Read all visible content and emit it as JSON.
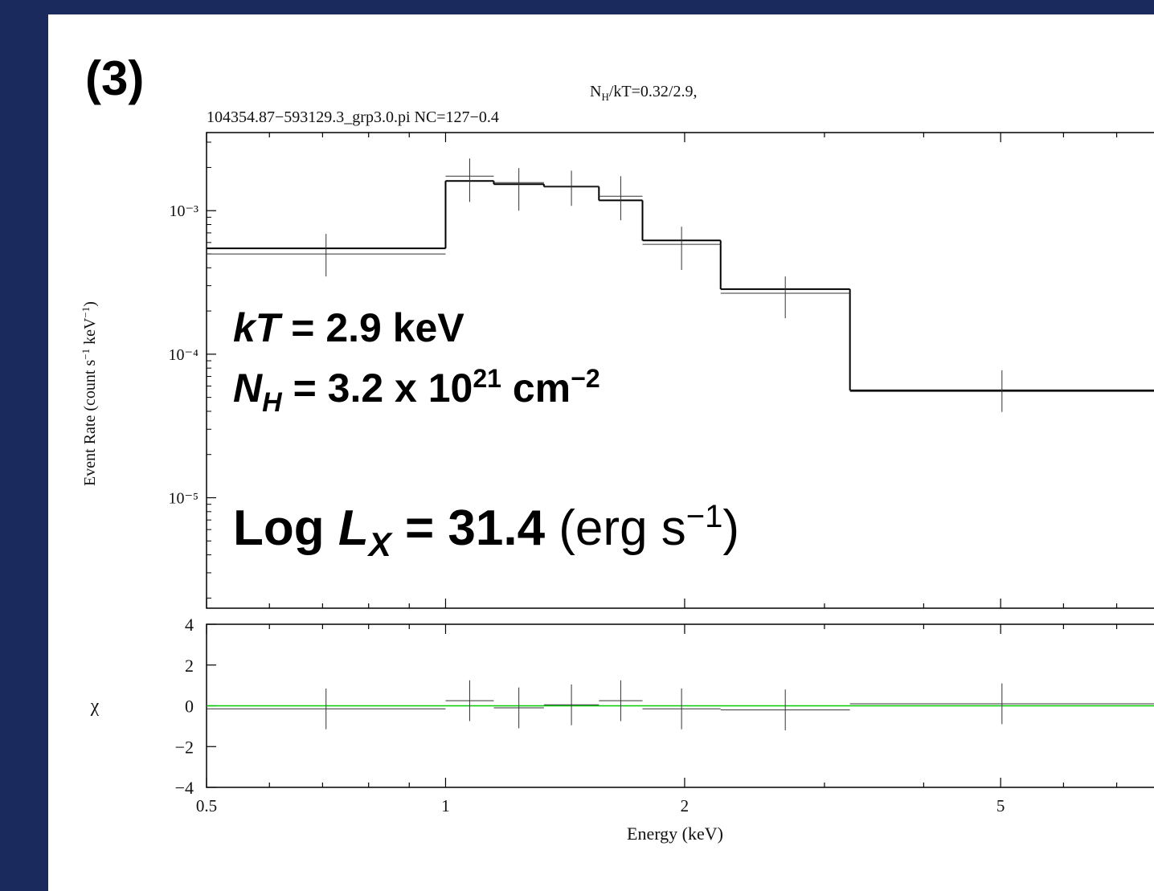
{
  "chart_data": {
    "type": "step",
    "panel_label": "(3)",
    "title": [
      "N",
      "H",
      "/kT=0.32/2.9,"
    ],
    "subtitle": "104354.87−593129.3_grp3.0.pi NC=127−0.4",
    "annotations": {
      "temperature": [
        "kT",
        " = 2.9 keV"
      ],
      "column": [
        "N",
        "H",
        " = 3.2 x 10",
        "21",
        " cm",
        "−2"
      ],
      "luminosity": [
        "Log ",
        "L",
        "X",
        " = 31.4",
        " (erg s",
        "−1",
        ")"
      ]
    },
    "x_label": "Energy (keV)",
    "y_label": [
      "Event Rate (count s",
      "−1",
      " keV",
      "−1",
      ")"
    ],
    "residual_label": "χ",
    "xscale": "log",
    "xlim": [
      0.5,
      7.8
    ],
    "xticks": [
      0.5,
      1,
      2,
      5
    ],
    "xminor": [
      0.6,
      0.7,
      0.8,
      0.9,
      3,
      4,
      6,
      7
    ],
    "yscale": "log",
    "ylim": [
      1.7e-06,
      0.0035
    ],
    "yticks": [
      {
        "value": 0.001,
        "label": "10⁻³"
      },
      {
        "value": 0.0001,
        "label": "10⁻⁴"
      },
      {
        "value": 1e-05,
        "label": "10⁻⁵"
      }
    ],
    "yminor": [
      0.002,
      0.003,
      0.0002,
      0.0003,
      0.0004,
      0.0005,
      0.0006,
      0.0007,
      0.0008,
      0.0009,
      2e-05,
      3e-05,
      4e-05,
      5e-05,
      6e-05,
      7e-05,
      8e-05,
      9e-05,
      2e-06,
      3e-06,
      4e-06,
      5e-06,
      6e-06,
      7e-06,
      8e-06,
      9e-06
    ],
    "bins": [
      0.5,
      1.0,
      1.15,
      1.33,
      1.56,
      1.77,
      2.22,
      3.23,
      7.8
    ],
    "model": {
      "color": "#000000",
      "values": [
        0.000546,
        0.00161,
        0.00153,
        0.00147,
        0.00118,
        0.00062,
        0.000284,
        5.6e-05
      ]
    },
    "data": {
      "color": "#333333",
      "values": [
        0.000499,
        0.00174,
        0.00157,
        0.00147,
        0.00126,
        0.000583,
        0.000266,
        5.5e-05
      ],
      "lower": [
        0.000348,
        0.00115,
        0.001,
        0.00108,
        0.000857,
        0.000386,
        0.000178,
        3.96e-05
      ],
      "upper": [
        0.000689,
        0.00231,
        0.00198,
        0.0019,
        0.00174,
        0.000773,
        0.000348,
        7.73e-05
      ]
    },
    "residuals": {
      "color": "#333333",
      "zero_color": "#00cc00",
      "values": [
        -0.15,
        0.25,
        -0.1,
        0.05,
        0.25,
        -0.15,
        -0.2,
        0.1
      ],
      "errors": [
        1,
        1,
        1,
        1,
        1,
        1,
        1,
        1
      ]
    },
    "residual_ylim": [
      -4,
      4
    ],
    "residual_yticks": [
      {
        "value": -4,
        "label": "−4"
      },
      {
        "value": -2,
        "label": "−2"
      },
      0,
      2,
      4
    ]
  }
}
